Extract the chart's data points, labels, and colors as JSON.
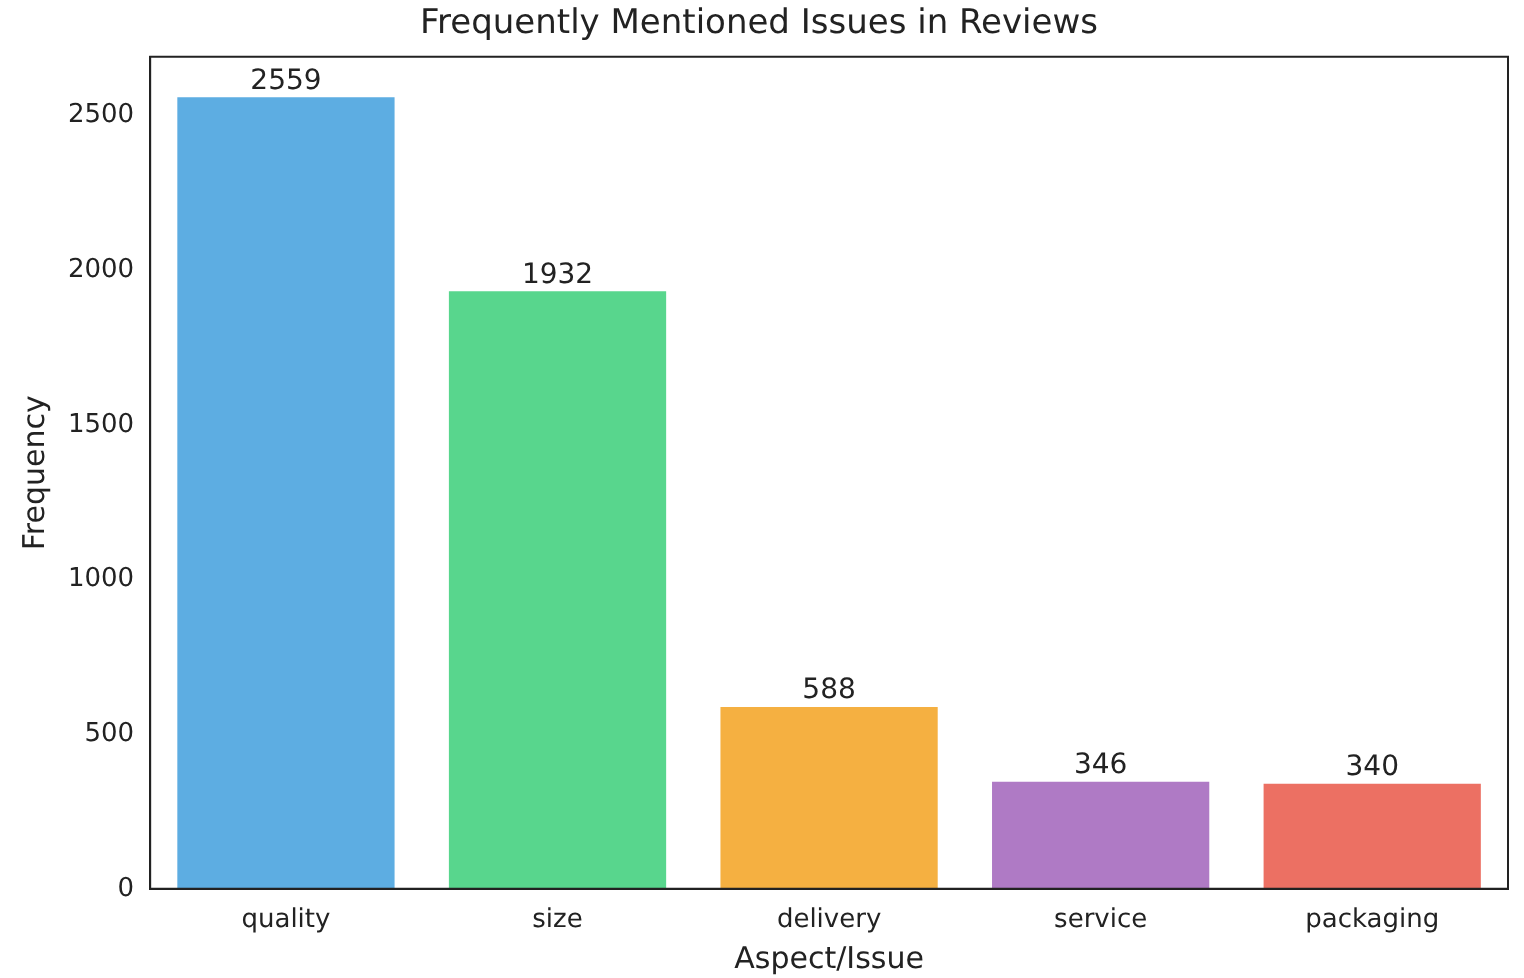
{
  "chart_data": {
    "type": "bar",
    "title": "Frequently Mentioned Issues in Reviews",
    "xlabel": "Aspect/Issue",
    "ylabel": "Frequency",
    "categories": [
      "quality",
      "size",
      "delivery",
      "service",
      "packaging"
    ],
    "values": [
      2559,
      1932,
      588,
      346,
      340
    ],
    "colors": [
      "#5dade2",
      "#58d68d",
      "#f5b041",
      "#af7ac5",
      "#ec7063"
    ],
    "ylim": [
      0,
      2690
    ],
    "yticks": [
      0,
      500,
      1000,
      1500,
      2000,
      2500
    ],
    "grid": false,
    "legend": false,
    "data_labels": true
  }
}
